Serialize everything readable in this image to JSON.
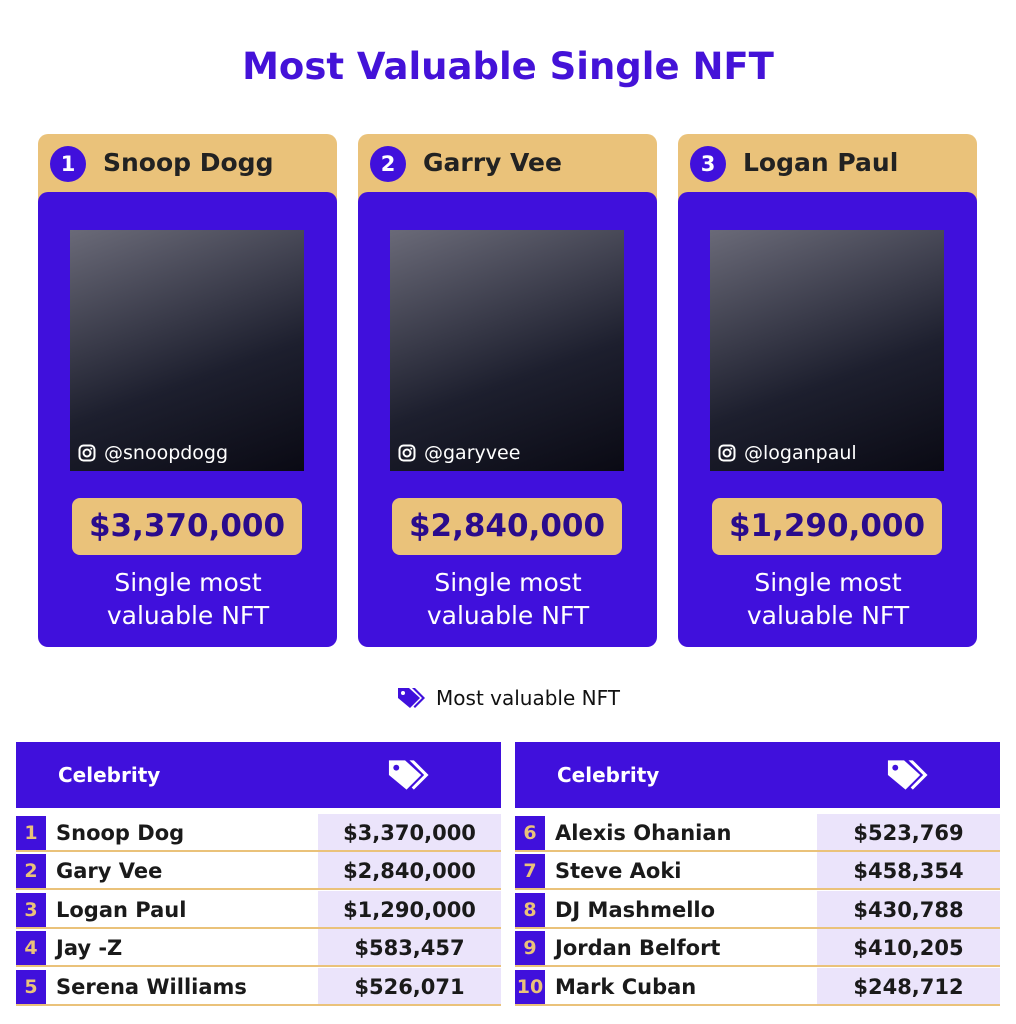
{
  "title": "Most Valuable Single NFT",
  "cards": [
    {
      "rank": "1",
      "name": "Snoop Dogg",
      "handle": "@snoopdogg",
      "value": "$3,370,000",
      "caption": "Single most valuable NFT"
    },
    {
      "rank": "2",
      "name": "Garry Vee",
      "handle": "@garyvee",
      "value": "$2,840,000",
      "caption": "Single most valuable NFT"
    },
    {
      "rank": "3",
      "name": "Logan Paul",
      "handle": "@loganpaul",
      "value": "$1,290,000",
      "caption": "Single most valuable NFT"
    }
  ],
  "legend": "Most valuable NFT",
  "tables": [
    {
      "header": "Celebrity",
      "rows": [
        [
          "1",
          "Snoop Dog",
          "$3,370,000"
        ],
        [
          "2",
          "Gary Vee",
          "$2,840,000"
        ],
        [
          "3",
          "Logan Paul",
          "$1,290,000"
        ],
        [
          "4",
          "Jay -Z",
          "$583,457"
        ],
        [
          "5",
          "Serena Williams",
          "$526,071"
        ]
      ]
    },
    {
      "header": "Celebrity",
      "rows": [
        [
          "6",
          "Alexis Ohanian",
          "$523,769"
        ],
        [
          "7",
          "Steve Aoki",
          "$458,354"
        ],
        [
          "8",
          "DJ Mashmello",
          "$430,788"
        ],
        [
          "9",
          "Jordan Belfort",
          "$410,205"
        ],
        [
          "10",
          "Mark Cuban",
          "$248,712"
        ]
      ]
    }
  ]
}
